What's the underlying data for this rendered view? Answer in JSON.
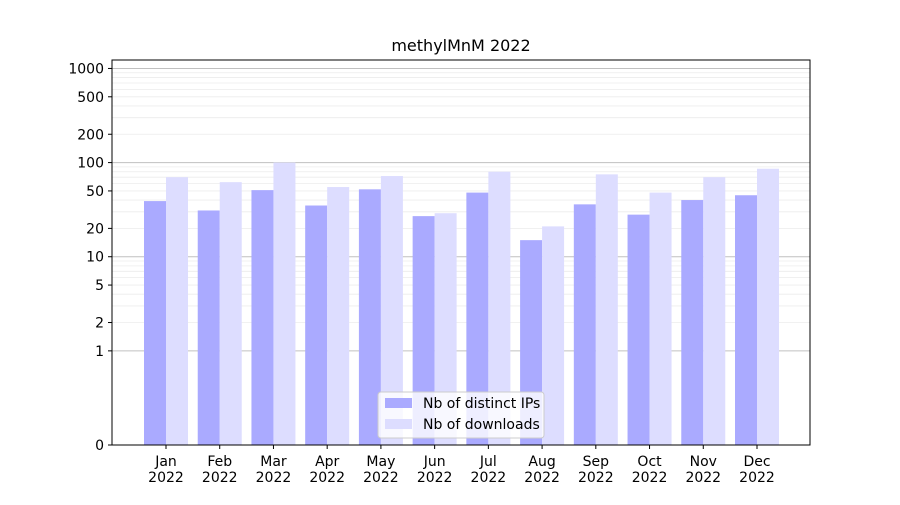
{
  "chart_data": {
    "type": "bar",
    "title": "methylMnM 2022",
    "xlabel": "",
    "ylabel": "",
    "yscale": "symlog",
    "ylim": [
      0,
      1200
    ],
    "ytick_values": [
      0,
      1,
      2,
      5,
      10,
      20,
      50,
      100,
      200,
      500,
      1000
    ],
    "ytick_labels": [
      "0",
      "1",
      "2",
      "5",
      "10",
      "20",
      "50",
      "100",
      "200",
      "500",
      "1000"
    ],
    "categories": [
      "Jan\n2022",
      "Feb\n2022",
      "Mar\n2022",
      "Apr\n2022",
      "May\n2022",
      "Jun\n2022",
      "Jul\n2022",
      "Aug\n2022",
      "Sep\n2022",
      "Oct\n2022",
      "Nov\n2022",
      "Dec\n2022"
    ],
    "series": [
      {
        "name": "Nb of distinct IPs",
        "color": "#aaaaff",
        "values": [
          39,
          31,
          51,
          35,
          52,
          27,
          48,
          15,
          36,
          28,
          40,
          45
        ]
      },
      {
        "name": "Nb of downloads",
        "color": "#ddddff",
        "values": [
          70,
          62,
          100,
          55,
          72,
          29,
          80,
          21,
          75,
          48,
          70,
          86
        ]
      }
    ],
    "grid": true,
    "legend_position": "lower-center"
  }
}
